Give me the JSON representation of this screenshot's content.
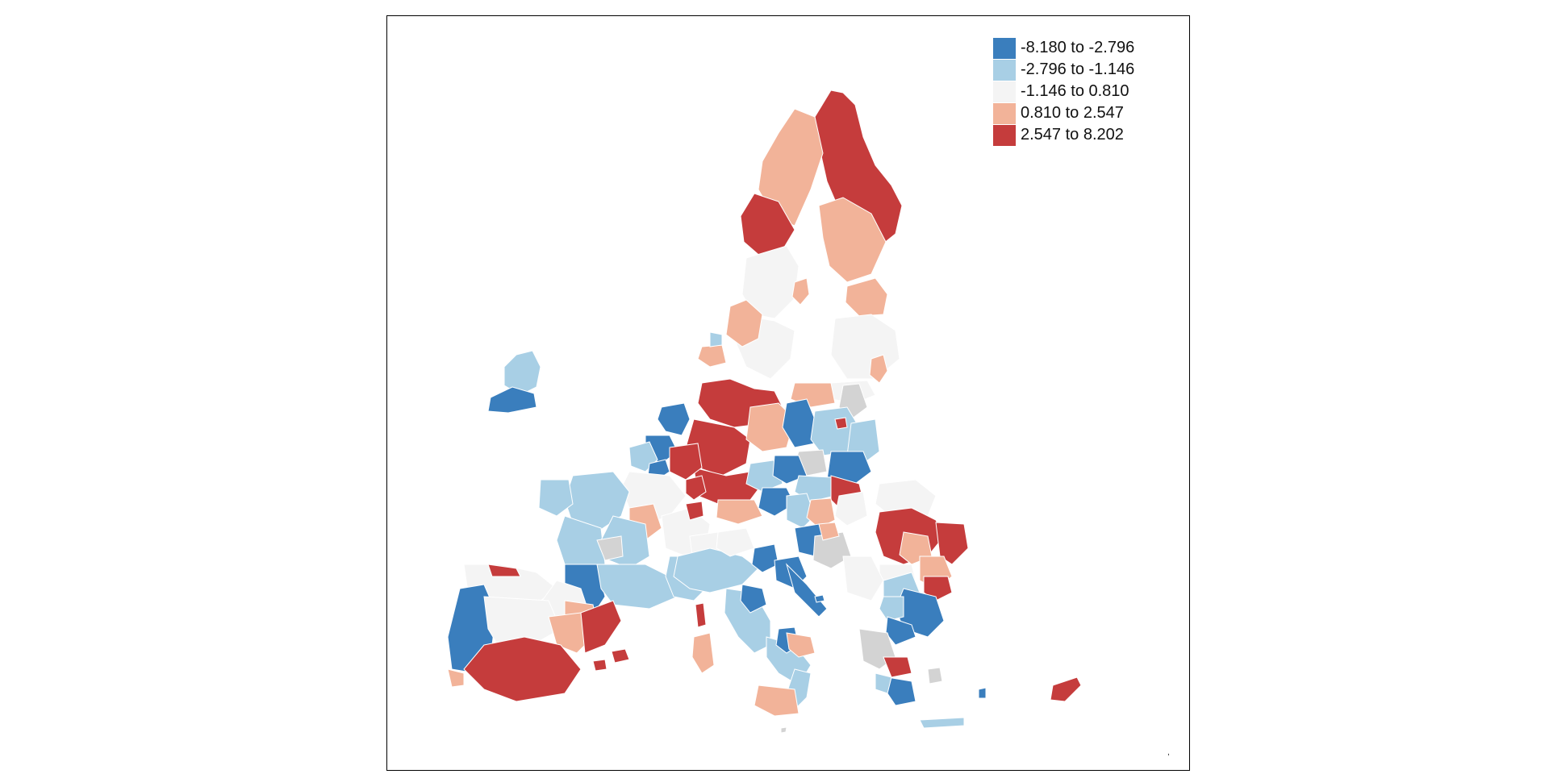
{
  "legend": {
    "items": [
      {
        "label": "-8.180 to -2.796",
        "color": "#3a7ebd"
      },
      {
        "label": "-2.796 to -1.146",
        "color": "#a8cfe5"
      },
      {
        "label": "-1.146 to 0.810",
        "color": "#f4f4f4"
      },
      {
        "label": "0.810 to 2.547",
        "color": "#f2b399"
      },
      {
        "label": "2.547 to 8.202",
        "color": "#c53c3c"
      }
    ]
  },
  "colors": {
    "nodata": "#d3d3d3",
    "border": "#ffffff",
    "frame": "#000000"
  },
  "scale_mark": ","
}
